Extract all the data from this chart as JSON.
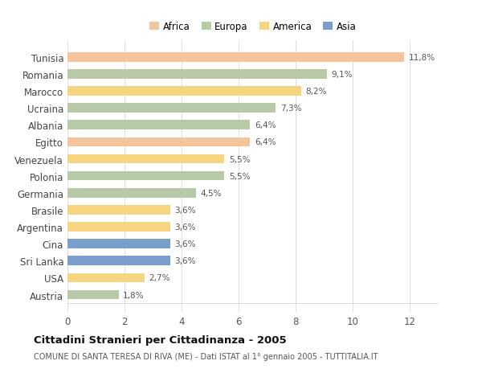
{
  "categories": [
    "Tunisia",
    "Romania",
    "Marocco",
    "Ucraina",
    "Albania",
    "Egitto",
    "Venezuela",
    "Polonia",
    "Germania",
    "Brasile",
    "Argentina",
    "Cina",
    "Sri Lanka",
    "USA",
    "Austria"
  ],
  "values": [
    11.8,
    9.1,
    8.2,
    7.3,
    6.4,
    6.4,
    5.5,
    5.5,
    4.5,
    3.6,
    3.6,
    3.6,
    3.6,
    2.7,
    1.8
  ],
  "labels": [
    "11,8%",
    "9,1%",
    "8,2%",
    "7,3%",
    "6,4%",
    "6,4%",
    "5,5%",
    "5,5%",
    "4,5%",
    "3,6%",
    "3,6%",
    "3,6%",
    "3,6%",
    "2,7%",
    "1,8%"
  ],
  "colors": [
    "#F5C49A",
    "#B8C9A8",
    "#F5D580",
    "#B8C9A8",
    "#B8C9A8",
    "#F5C49A",
    "#F5D580",
    "#B8C9A8",
    "#B8C9A8",
    "#F5D580",
    "#F5D580",
    "#7B9FCC",
    "#7B9FCC",
    "#F5D580",
    "#B8C9A8"
  ],
  "legend_labels": [
    "Africa",
    "Europa",
    "America",
    "Asia"
  ],
  "legend_colors": [
    "#F5C49A",
    "#B8C9A8",
    "#F5D580",
    "#7B9FCC"
  ],
  "title": "Cittadini Stranieri per Cittadinanza - 2005",
  "subtitle": "COMUNE DI SANTA TERESA DI RIVA (ME) - Dati ISTAT al 1° gennaio 2005 - TUTTITALIA.IT",
  "xlim": [
    0,
    13.0
  ],
  "xticks": [
    0,
    2,
    4,
    6,
    8,
    10,
    12
  ],
  "background_color": "#ffffff",
  "grid_color": "#e0e0e0"
}
